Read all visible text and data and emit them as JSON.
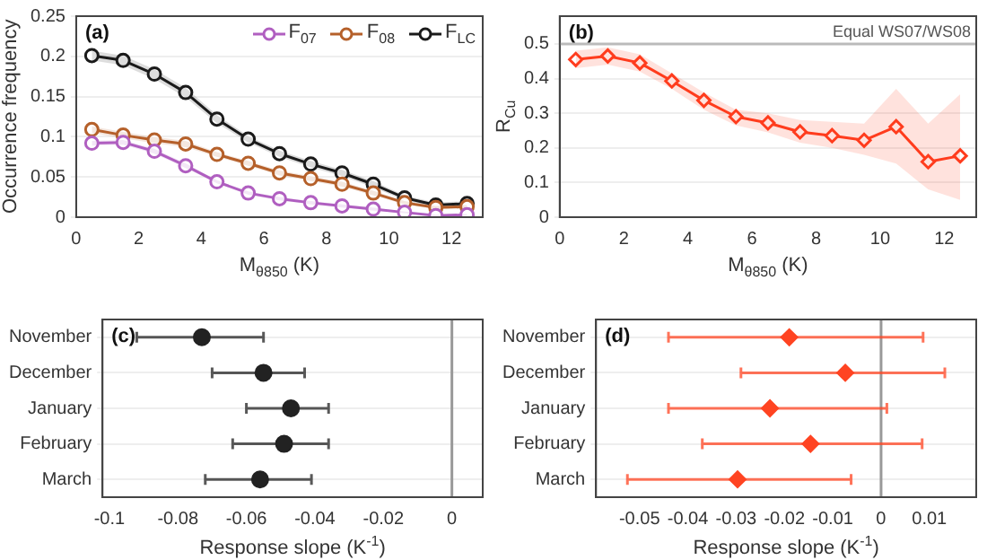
{
  "chart_data": [
    {
      "type": "line",
      "xlabel": "M$_{θ850}$ (K)",
      "ylabel": "Occurrence frequency",
      "annotations": [
        "(a)"
      ],
      "x": [
        0.5,
        1.5,
        2.5,
        3.5,
        4.5,
        5.5,
        6.5,
        7.5,
        8.5,
        9.5,
        10.5,
        11.5,
        12.5
      ],
      "xlim": [
        0,
        13
      ],
      "xticks": [
        0,
        2,
        4,
        6,
        8,
        10,
        12
      ],
      "ylim": [
        0,
        0.25
      ],
      "yticks": [
        0,
        0.05,
        0.1,
        0.15,
        0.2,
        0.25
      ],
      "grid": "y",
      "legend": "top right",
      "marker": "circle",
      "series": [
        {
          "name": "F$_{07}$",
          "color": "#b05fc0",
          "values": [
            0.092,
            0.093,
            0.082,
            0.064,
            0.044,
            0.03,
            0.023,
            0.018,
            0.014,
            0.01,
            0.006,
            0.002,
            0.003
          ],
          "lower": [
            0.089,
            0.09,
            0.079,
            0.061,
            0.042,
            0.028,
            0.021,
            0.016,
            0.012,
            0.008,
            0.005,
            0.001,
            0.002
          ],
          "upper": [
            0.095,
            0.096,
            0.085,
            0.067,
            0.046,
            0.032,
            0.025,
            0.02,
            0.016,
            0.012,
            0.007,
            0.003,
            0.004
          ]
        },
        {
          "name": "F$_{08}$",
          "color": "#b5602a",
          "values": [
            0.109,
            0.102,
            0.096,
            0.091,
            0.078,
            0.067,
            0.055,
            0.048,
            0.041,
            0.03,
            0.018,
            0.012,
            0.013
          ],
          "lower": [
            0.105,
            0.098,
            0.092,
            0.087,
            0.075,
            0.064,
            0.052,
            0.045,
            0.038,
            0.027,
            0.016,
            0.01,
            0.011
          ],
          "upper": [
            0.113,
            0.106,
            0.1,
            0.095,
            0.081,
            0.07,
            0.058,
            0.051,
            0.044,
            0.033,
            0.02,
            0.014,
            0.015
          ]
        },
        {
          "name": "F$_{LC}$",
          "color": "#1a1a1a",
          "values": [
            0.201,
            0.195,
            0.178,
            0.155,
            0.122,
            0.097,
            0.079,
            0.066,
            0.055,
            0.041,
            0.024,
            0.015,
            0.017
          ],
          "lower": [
            0.195,
            0.189,
            0.172,
            0.149,
            0.117,
            0.093,
            0.075,
            0.062,
            0.051,
            0.037,
            0.021,
            0.012,
            0.014
          ],
          "upper": [
            0.207,
            0.201,
            0.184,
            0.161,
            0.127,
            0.101,
            0.083,
            0.07,
            0.059,
            0.045,
            0.027,
            0.018,
            0.02
          ]
        }
      ]
    },
    {
      "type": "line",
      "xlabel": "M$_{θ850}$ (K)",
      "ylabel": "R$_{Cu}$",
      "annotations": [
        "(b)"
      ],
      "x": [
        0.5,
        1.5,
        2.5,
        3.5,
        4.5,
        5.5,
        6.5,
        7.5,
        8.5,
        9.5,
        10.5,
        11.5,
        12.5
      ],
      "xlim": [
        0,
        13
      ],
      "xticks": [
        0,
        2,
        4,
        6,
        8,
        10,
        12
      ],
      "ylim": [
        0,
        0.58
      ],
      "yticks": [
        0,
        0.1,
        0.2,
        0.3,
        0.4,
        0.5
      ],
      "grid": "y",
      "marker": "diamond",
      "ref_lines": [
        {
          "axis": "y",
          "value": 0.5,
          "label": "Equal WS07/WS08",
          "color": "#bbbbbb"
        }
      ],
      "series": [
        {
          "color": "#ff3c1e",
          "values": [
            0.455,
            0.465,
            0.445,
            0.393,
            0.337,
            0.29,
            0.272,
            0.246,
            0.235,
            0.222,
            0.261,
            0.16,
            0.177
          ],
          "lower": [
            0.43,
            0.44,
            0.42,
            0.37,
            0.31,
            0.265,
            0.245,
            0.215,
            0.2,
            0.18,
            0.155,
            0.08,
            0.05
          ],
          "upper": [
            0.48,
            0.49,
            0.47,
            0.415,
            0.36,
            0.31,
            0.3,
            0.28,
            0.275,
            0.27,
            0.37,
            0.27,
            0.355
          ]
        }
      ]
    },
    {
      "type": "scatter",
      "orientation": "horizontal",
      "xlabel": "Response slope (K$^{-1}$)",
      "annotations": [
        "(c)"
      ],
      "categories": [
        "November",
        "December",
        "January",
        "February",
        "March"
      ],
      "xlim": [
        -0.102,
        0.009
      ],
      "xticks": [
        -0.1,
        -0.08,
        -0.06,
        -0.04,
        -0.02,
        0
      ],
      "grid": "y",
      "marker": "circle",
      "ref_lines": [
        {
          "axis": "x",
          "value": 0,
          "color": "#999999"
        }
      ],
      "series": [
        {
          "color": "#222222",
          "values": [
            -0.073,
            -0.055,
            -0.047,
            -0.049,
            -0.056
          ],
          "errors": [
            [
              -0.092,
              -0.055
            ],
            [
              -0.07,
              -0.043
            ],
            [
              -0.06,
              -0.036
            ],
            [
              -0.064,
              -0.036
            ],
            [
              -0.072,
              -0.041
            ]
          ]
        }
      ]
    },
    {
      "type": "scatter",
      "orientation": "horizontal",
      "xlabel": "Response slope (K$^{-1}$)",
      "annotations": [
        "(d)"
      ],
      "categories": [
        "November",
        "December",
        "January",
        "February",
        "March"
      ],
      "xlim": [
        -0.059,
        0.0197
      ],
      "xticks": [
        -0.05,
        -0.04,
        -0.03,
        -0.02,
        -0.01,
        0,
        0.01
      ],
      "grid": "y",
      "marker": "diamond",
      "ref_lines": [
        {
          "axis": "x",
          "value": 0,
          "color": "#999999"
        }
      ],
      "series": [
        {
          "color": "#ff4422",
          "values": [
            -0.019,
            -0.0074,
            -0.023,
            -0.0146,
            -0.0297
          ],
          "errors": [
            [
              -0.044,
              0.0087
            ],
            [
              -0.029,
              0.0132
            ],
            [
              -0.044,
              0.0012
            ],
            [
              -0.037,
              0.0085
            ],
            [
              -0.0525,
              -0.0062
            ]
          ]
        }
      ]
    }
  ]
}
